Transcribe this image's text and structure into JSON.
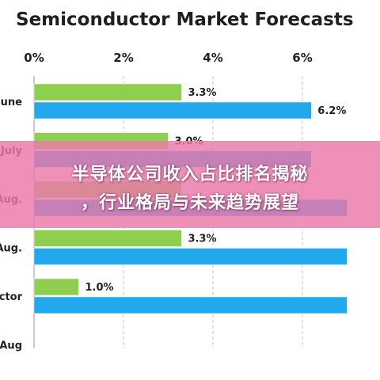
{
  "chart_data": {
    "type": "bar",
    "orientation": "horizontal",
    "title": "Semiconductor Market Forecasts",
    "xlim": [
      0,
      7
    ],
    "xticks": [
      "0%",
      "2%",
      "4%",
      "6%"
    ],
    "xtick_values": [
      0,
      2,
      4,
      6
    ],
    "grid": true,
    "colors": {
      "green": "#8fcf4f",
      "blue": "#22a8ec"
    },
    "categories": [
      "June",
      "July",
      "Aug.",
      "Aug.",
      "ctor",
      "Aug"
    ],
    "bars": [
      {
        "category_index": 0,
        "color": "green",
        "value": 3.3,
        "label": "3.3%"
      },
      {
        "category_index": 0,
        "color": "blue",
        "value": 6.2,
        "label": "6.2%"
      },
      {
        "category_index": 1,
        "color": "green",
        "value": 3.0,
        "label": "3.0%"
      },
      {
        "category_index": 1,
        "color": "blue",
        "value": 6.2,
        "label": ""
      },
      {
        "category_index": 2,
        "color": "green",
        "value": 3.3,
        "label": ""
      },
      {
        "category_index": 2,
        "color": "blue",
        "value": 7.0,
        "label": ""
      },
      {
        "category_index": 3,
        "color": "green",
        "value": 3.3,
        "label": "3.3%"
      },
      {
        "category_index": 3,
        "color": "blue",
        "value": 7.0,
        "label": ""
      },
      {
        "category_index": 4,
        "color": "green",
        "value": 1.0,
        "label": "1.0%"
      },
      {
        "category_index": 4,
        "color": "blue",
        "value": 7.0,
        "label": ""
      }
    ]
  },
  "banner": {
    "line1": "半导体公司收入占比排名揭秘",
    "line2": "，行业格局与未来趋势展望"
  }
}
